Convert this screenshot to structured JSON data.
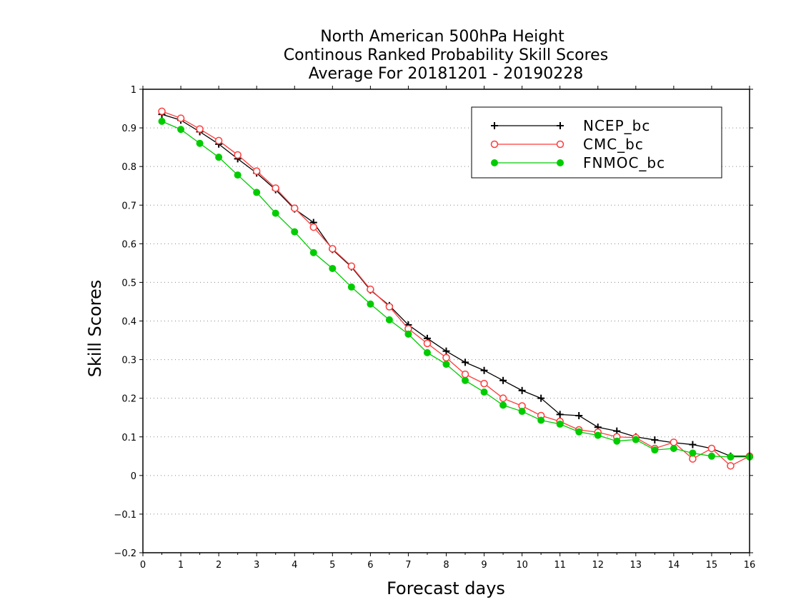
{
  "chart_data": {
    "type": "line",
    "title_lines": [
      "North American 500hPa Height",
      "Continous Ranked Probability Skill Scores",
      "Average For 20181201 - 20190228"
    ],
    "xlabel": "Forecast days",
    "ylabel": "Skill Scores",
    "xlim": [
      0,
      16
    ],
    "ylim": [
      -0.2,
      1
    ],
    "x_ticks": [
      0,
      1,
      2,
      3,
      4,
      5,
      6,
      7,
      8,
      9,
      10,
      11,
      12,
      13,
      14,
      15,
      16
    ],
    "x_tick_labels": [
      "0",
      "1",
      "2",
      "3",
      "4",
      "5",
      "6",
      "7",
      "8",
      "9",
      "10",
      "11",
      "12",
      "13",
      "14",
      "15",
      "16"
    ],
    "y_ticks": [
      -0.2,
      -0.1,
      0,
      0.1,
      0.2,
      0.3,
      0.4,
      0.5,
      0.6,
      0.7,
      0.8,
      0.9,
      1
    ],
    "y_tick_labels": [
      "−0.2",
      "−0.1",
      "0",
      "0.1",
      "0.2",
      "0.3",
      "0.4",
      "0.5",
      "0.6",
      "0.7",
      "0.8",
      "0.9",
      "1"
    ],
    "grid": "horizontal dotted",
    "legend_position": "top-right",
    "x": [
      0.5,
      1,
      1.5,
      2,
      2.5,
      3,
      3.5,
      4,
      4.5,
      5,
      5.5,
      6,
      6.5,
      7,
      7.5,
      8,
      8.5,
      9,
      9.5,
      10,
      10.5,
      11,
      11.5,
      12,
      12.5,
      13,
      13.5,
      14,
      14.5,
      15,
      15.5,
      16
    ],
    "series": [
      {
        "name": "NCEP_bc",
        "color": "#000000",
        "marker": "plus",
        "values": [
          0.935,
          0.92,
          0.89,
          0.858,
          0.82,
          0.783,
          0.74,
          0.69,
          0.655,
          0.585,
          0.54,
          0.48,
          0.44,
          0.39,
          0.355,
          0.322,
          0.293,
          0.272,
          0.246,
          0.22,
          0.2,
          0.158,
          0.155,
          0.125,
          0.115,
          0.1,
          0.092,
          0.085,
          0.08,
          0.07,
          0.05,
          0.05
        ]
      },
      {
        "name": "CMC_bc",
        "color": "#ff3b3b",
        "marker": "open-circle",
        "values": [
          0.943,
          0.925,
          0.897,
          0.867,
          0.83,
          0.788,
          0.744,
          0.692,
          0.643,
          0.587,
          0.542,
          0.482,
          0.437,
          0.38,
          0.342,
          0.305,
          0.262,
          0.238,
          0.2,
          0.18,
          0.155,
          0.14,
          0.118,
          0.112,
          0.1,
          0.098,
          0.07,
          0.086,
          0.043,
          0.07,
          0.025,
          0.05
        ]
      },
      {
        "name": "FNMOC_bc",
        "color": "#00cc00",
        "marker": "filled-circle",
        "values": [
          0.917,
          0.896,
          0.86,
          0.824,
          0.778,
          0.733,
          0.679,
          0.631,
          0.577,
          0.536,
          0.488,
          0.444,
          0.403,
          0.366,
          0.318,
          0.288,
          0.246,
          0.216,
          0.182,
          0.166,
          0.143,
          0.133,
          0.113,
          0.104,
          0.089,
          0.093,
          0.066,
          0.07,
          0.058,
          0.05,
          0.048,
          0.048
        ]
      }
    ]
  }
}
